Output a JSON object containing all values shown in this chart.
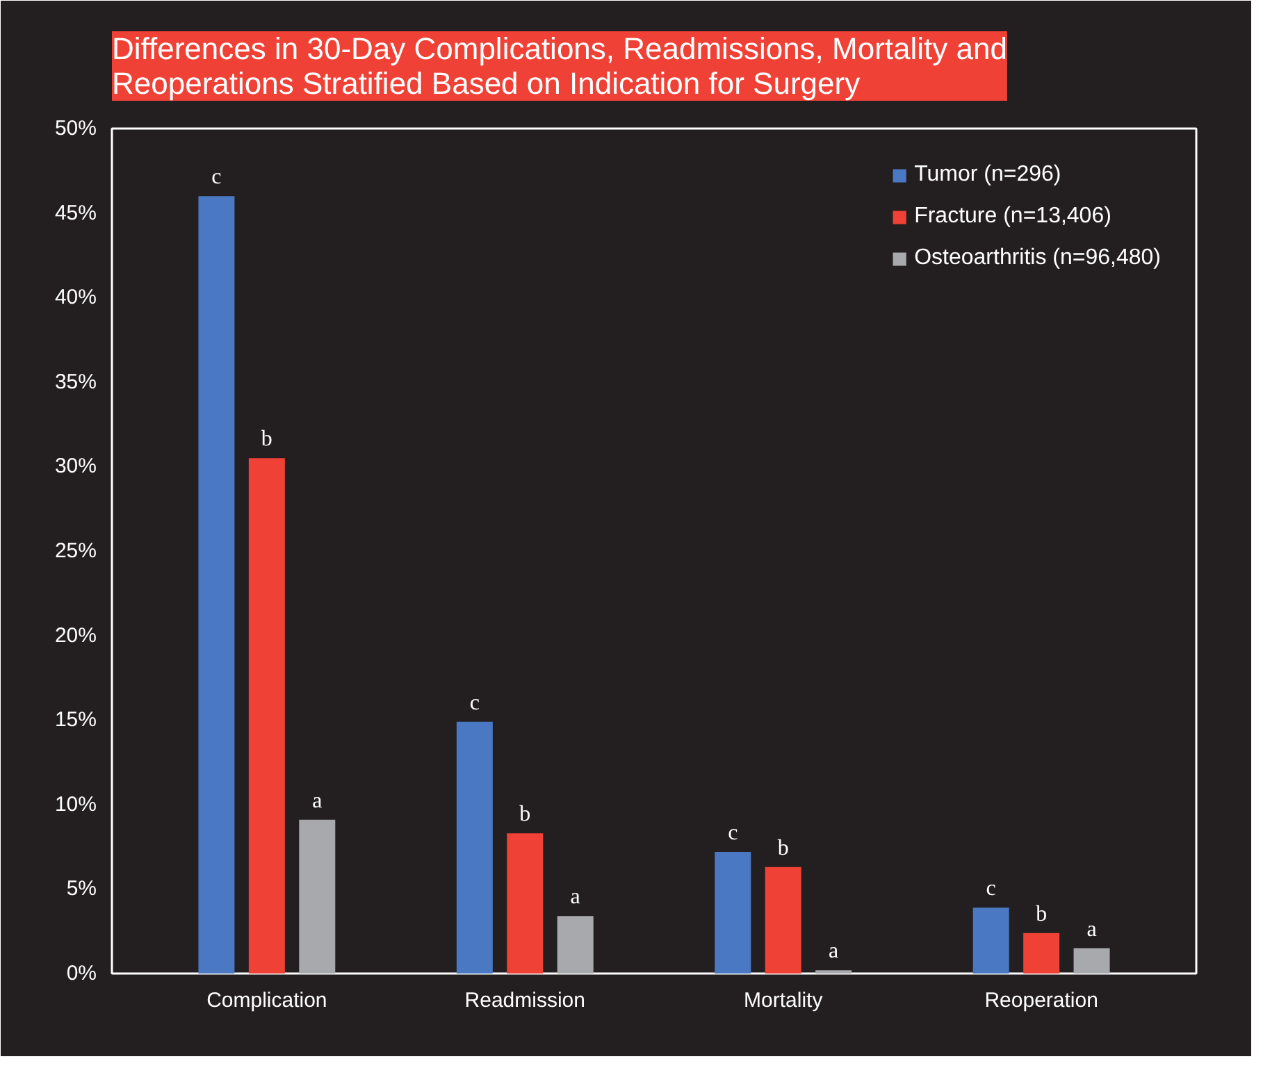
{
  "chart_data": {
    "type": "bar",
    "title": "Differences in 30-Day Complications, Readmissions, Mortality and\nReoperations Stratified Based on Indication for Surgery",
    "categories": [
      "Complication",
      "Readmission",
      "Mortality",
      "Reoperation"
    ],
    "series": [
      {
        "name": "Tumor (n=296)",
        "color": "#4a78c2",
        "values": [
          46.0,
          14.9,
          7.2,
          3.9
        ],
        "value_labels": [
          "c",
          "c",
          "c",
          "c"
        ]
      },
      {
        "name": "Fracture (n=13,406)",
        "color": "#ef4136",
        "values": [
          30.5,
          8.3,
          6.3,
          2.4
        ],
        "value_labels": [
          "b",
          "b",
          "b",
          "b"
        ]
      },
      {
        "name": "Osteoarthritis (n=96,480)",
        "color": "#a7a9ac",
        "values": [
          9.1,
          3.4,
          0.2,
          1.5
        ],
        "value_labels": [
          "a",
          "a",
          "a",
          "a"
        ]
      }
    ],
    "ylim": [
      0,
      50
    ],
    "yticks": [
      {
        "value": 0,
        "label": "0%"
      },
      {
        "value": 5,
        "label": "5%"
      },
      {
        "value": 10,
        "label": "10%"
      },
      {
        "value": 15,
        "label": "15%"
      },
      {
        "value": 20,
        "label": "20%"
      },
      {
        "value": 25,
        "label": "25%"
      },
      {
        "value": 30,
        "label": "30%"
      },
      {
        "value": 35,
        "label": "35%"
      },
      {
        "value": 40,
        "label": "40%"
      },
      {
        "value": 45,
        "label": "45%"
      },
      {
        "value": 50,
        "label": "50%"
      }
    ],
    "grid": false,
    "legend": "top right"
  }
}
